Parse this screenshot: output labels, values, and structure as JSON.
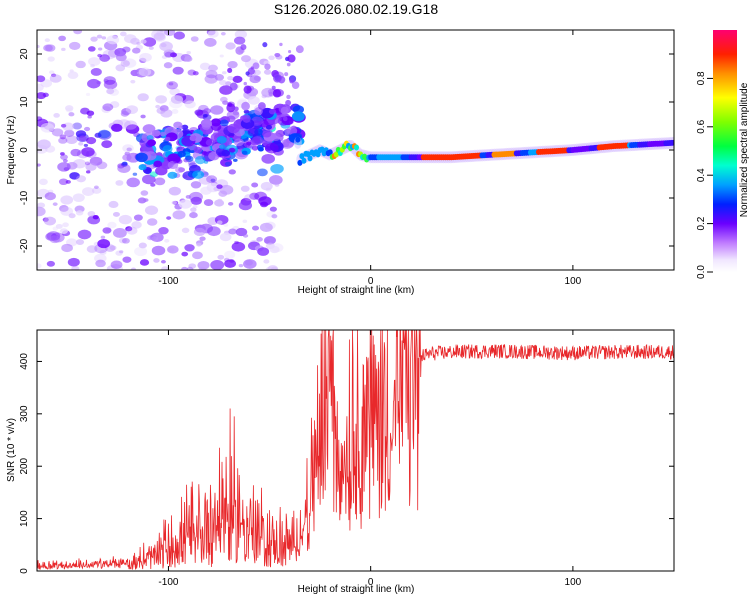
{
  "title": "S126.2026.080.02.19.G18",
  "chart_data": [
    {
      "type": "heatmap",
      "title": "S126.2026.080.02.19.G18",
      "xlabel": "Height of straight line (km)",
      "ylabel": "Frequency (Hz)",
      "xlim": [
        -165,
        150
      ],
      "ylim": [
        -25,
        25
      ],
      "x_ticks": [
        -100,
        0,
        100
      ],
      "y_ticks": [
        -20,
        -10,
        0,
        10,
        20
      ],
      "colorbar": {
        "label": "Normalized spectral amplitude",
        "range": [
          0.0,
          1.0
        ],
        "ticks": [
          "0.0",
          "0.2",
          "0.4",
          "0.6",
          "0.8"
        ]
      },
      "ridge": {
        "x": [
          -35,
          -30,
          -25,
          -20,
          -15,
          -10,
          -5,
          0,
          20,
          40,
          60,
          80,
          100,
          120,
          150
        ],
        "y": [
          -2,
          -1,
          0,
          -1,
          0,
          1,
          -1,
          -1.5,
          -1.5,
          -1.5,
          -1,
          -0.5,
          0,
          0.8,
          1.5
        ]
      }
    },
    {
      "type": "line",
      "xlabel": "Height of straight line (km)",
      "ylabel": "SNR (10 * v/v)",
      "xlim": [
        -165,
        150
      ],
      "ylim": [
        0,
        460
      ],
      "x_ticks": [
        -100,
        0,
        100
      ],
      "y_ticks": [
        0,
        100,
        200,
        300,
        400
      ],
      "series": [
        {
          "name": "SNR",
          "color": "#e8282b",
          "x": [
            -165,
            -140,
            -120,
            -110,
            -100,
            -90,
            -80,
            -75,
            -70,
            -65,
            -60,
            -50,
            -40,
            -35,
            -30,
            -25,
            -20,
            -18,
            -15,
            -10,
            -5,
            0,
            5,
            10,
            15,
            20,
            25,
            30,
            40,
            60,
            80,
            100,
            120,
            150
          ],
          "y": [
            10,
            12,
            15,
            25,
            45,
            65,
            85,
            110,
            120,
            105,
            80,
            55,
            45,
            70,
            130,
            260,
            380,
            300,
            210,
            250,
            280,
            300,
            290,
            320,
            360,
            390,
            410,
            415,
            418,
            420,
            418,
            416,
            418,
            418
          ]
        }
      ]
    }
  ]
}
